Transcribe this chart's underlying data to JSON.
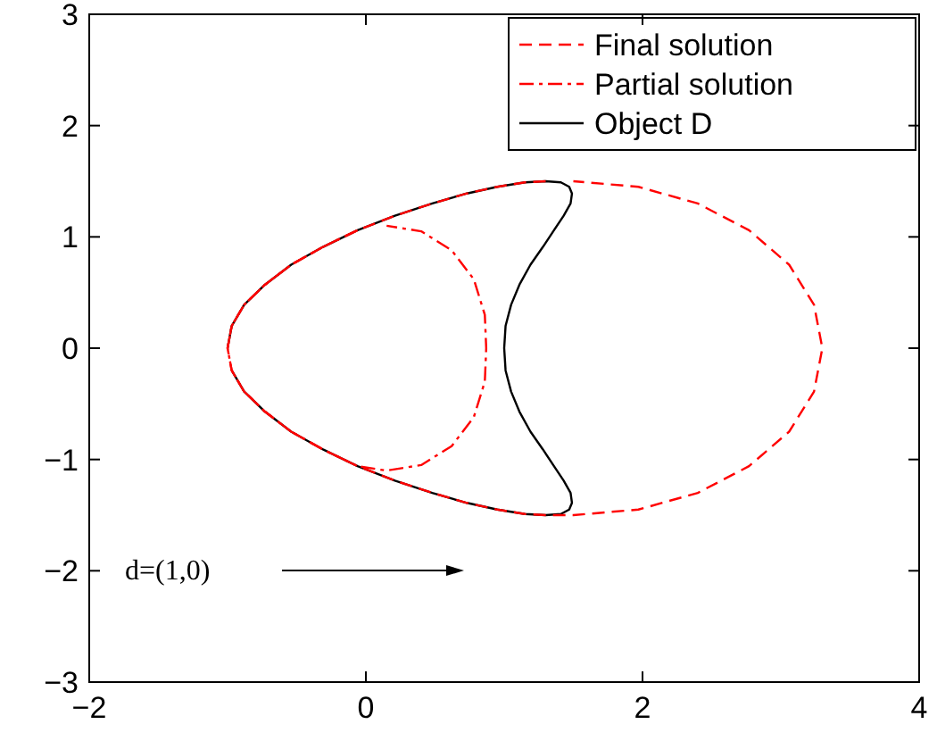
{
  "chart_data": {
    "type": "line",
    "xlim": [
      -2,
      4
    ],
    "ylim": [
      -3,
      3
    ],
    "xticks": [
      -2,
      0,
      2,
      4
    ],
    "yticks": [
      -3,
      -2,
      -1,
      0,
      1,
      2,
      3
    ],
    "legend": "top right",
    "annotations": [
      "d=(1,0)"
    ],
    "series": [
      {
        "name": "Final solution",
        "color": "#ff0000",
        "line_style": "dashed",
        "x": [
          1.3,
          1.15,
          0.95,
          0.73,
          0.48,
          0.21,
          -0.06,
          -0.31,
          -0.54,
          -0.73,
          -0.88,
          -0.97,
          -1,
          -0.97,
          -0.88,
          -0.73,
          -0.54,
          -0.31,
          -0.06,
          0.21,
          0.48,
          0.73,
          0.95,
          1.15,
          1.3,
          1.5,
          1.97,
          2.4,
          2.77,
          3.06,
          3.24,
          3.3,
          3.24,
          3.06,
          2.77,
          2.4,
          1.97,
          1.5
        ],
        "values": [
          1.5,
          1.49,
          1.45,
          1.39,
          1.3,
          1.19,
          1.06,
          0.91,
          0.75,
          0.57,
          0.39,
          0.2,
          0,
          -0.2,
          -0.39,
          -0.57,
          -0.75,
          -0.91,
          -1.06,
          -1.19,
          -1.3,
          -1.39,
          -1.45,
          -1.49,
          -1.5,
          -1.5,
          -1.45,
          -1.3,
          -1.06,
          -0.75,
          -0.39,
          0,
          0.39,
          0.75,
          1.06,
          1.3,
          1.45,
          1.5
        ]
      },
      {
        "name": "Partial solution",
        "color": "#ff0000",
        "line_style": "dashdot",
        "x": [
          -0.06,
          -0.31,
          -0.54,
          -0.73,
          -0.88,
          -0.97,
          -1,
          -0.97,
          -0.88,
          -0.73,
          -0.54,
          -0.31,
          -0.06,
          0.15,
          0.4,
          0.62,
          0.78,
          0.86,
          0.87,
          0.86,
          0.78,
          0.62,
          0.4,
          0.15
        ],
        "values": [
          1.06,
          0.91,
          0.75,
          0.57,
          0.39,
          0.2,
          0,
          -0.2,
          -0.39,
          -0.57,
          -0.75,
          -0.91,
          -1.06,
          -1.1,
          -1.05,
          -0.88,
          -0.62,
          -0.3,
          0,
          0.3,
          0.62,
          0.88,
          1.05,
          1.1
        ]
      },
      {
        "name": "Object D",
        "color": "#000000",
        "line_style": "solid",
        "x": [
          -1,
          -0.97,
          -0.88,
          -0.73,
          -0.54,
          -0.31,
          -0.06,
          0.21,
          0.48,
          0.73,
          0.95,
          1.15,
          1.3,
          1.41,
          1.47,
          1.49,
          1.48,
          1.43,
          1.36,
          1.28,
          1.19,
          1.11,
          1.05,
          1.01,
          1,
          1.01,
          1.05,
          1.11,
          1.19,
          1.28,
          1.36,
          1.43,
          1.48,
          1.49,
          1.47,
          1.41,
          1.3,
          1.15,
          0.95,
          0.73,
          0.48,
          0.21,
          -0.06,
          -0.31,
          -0.54,
          -0.73,
          -0.88,
          -0.97
        ],
        "values": [
          0,
          0.2,
          0.39,
          0.57,
          0.75,
          0.91,
          1.06,
          1.19,
          1.3,
          1.39,
          1.45,
          1.49,
          1.5,
          1.49,
          1.45,
          1.39,
          1.3,
          1.19,
          1.06,
          0.91,
          0.75,
          0.57,
          0.39,
          0.2,
          0,
          -0.2,
          -0.39,
          -0.57,
          -0.75,
          -0.91,
          -1.06,
          -1.19,
          -1.3,
          -1.39,
          -1.45,
          -1.49,
          -1.5,
          -1.49,
          -1.45,
          -1.39,
          -1.3,
          -1.19,
          -1.06,
          -0.91,
          -0.75,
          -0.57,
          -0.39,
          -0.2
        ]
      }
    ]
  }
}
